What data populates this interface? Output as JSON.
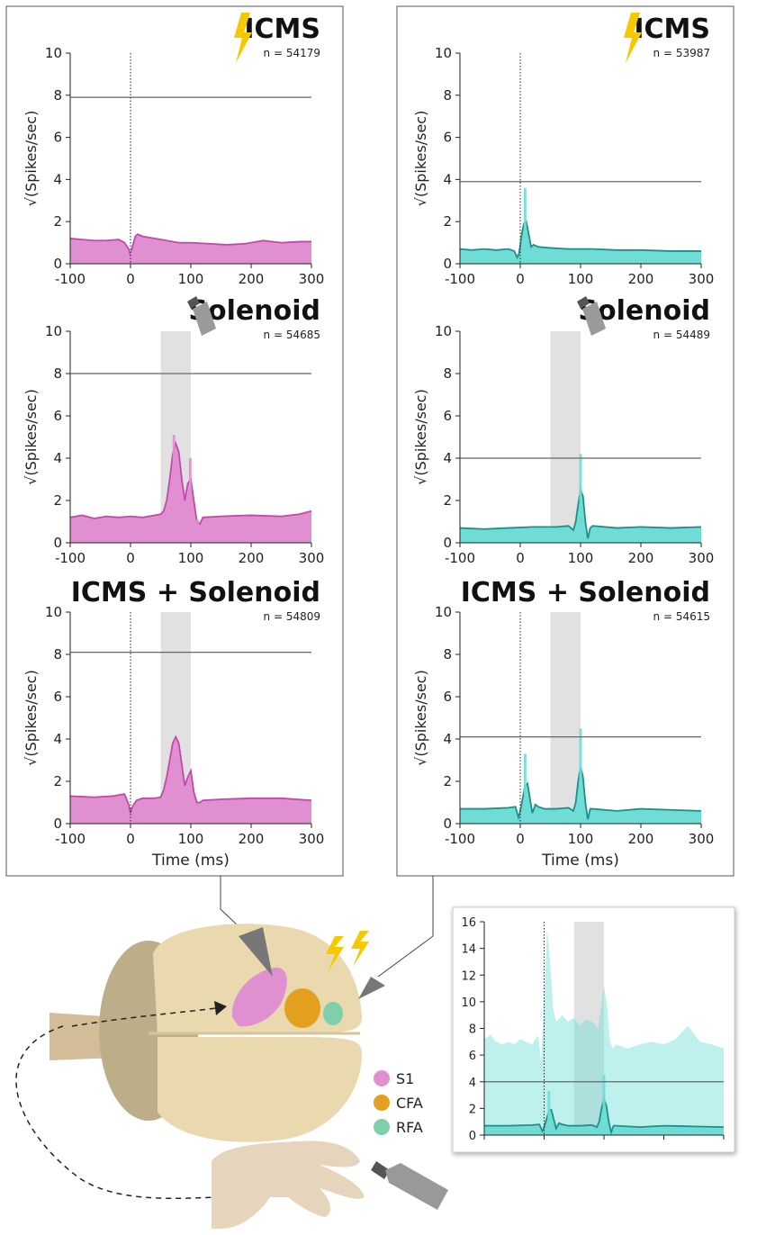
{
  "colors": {
    "s1": "#e08fd0",
    "s1_line": "#c04aaa",
    "rfa": "#6fddd6",
    "rfa_line": "#1e8f88",
    "cfa": "#e3a11f",
    "rfa_region": "#7fcfaa",
    "stim_shade": "#e1e1e1",
    "threshold": "#666666",
    "lightning": "#f6c800"
  },
  "legend": {
    "s1": "S1",
    "cfa": "CFA",
    "rfa": "RFA"
  },
  "chart_data": [
    {
      "type": "area",
      "column": "S1",
      "title": "ICMS",
      "n_label": "n = 54179",
      "ylabel": "√(Spikes/sec)",
      "xlabel": "",
      "xlim": [
        -100,
        300
      ],
      "ylim": [
        0,
        10
      ],
      "xticks": [
        "-100",
        "0",
        "100",
        "200",
        "300"
      ],
      "yticks": [
        "0",
        "2",
        "4",
        "6",
        "8",
        "10"
      ],
      "threshold": 7.9,
      "stim_marker_x": 0,
      "stim_window": null,
      "icon": "lightning",
      "x": [
        -100,
        -80,
        -60,
        -40,
        -20,
        -10,
        -3,
        0,
        3,
        8,
        12,
        20,
        40,
        60,
        80,
        100,
        130,
        160,
        190,
        220,
        250,
        280,
        300
      ],
      "y": [
        1.2,
        1.15,
        1.1,
        1.1,
        1.15,
        1.0,
        0.7,
        0.4,
        0.8,
        1.3,
        1.4,
        1.3,
        1.2,
        1.1,
        1.0,
        1.0,
        0.95,
        0.9,
        0.95,
        1.1,
        1.0,
        1.05,
        1.05
      ],
      "spikes": [
        [
          -2,
          0.2
        ],
        [
          2,
          0.6
        ]
      ]
    },
    {
      "type": "area",
      "column": "S1",
      "title": "Solenoid",
      "n_label": "n = 54685",
      "ylabel": "√(Spikes/sec)",
      "xlabel": "",
      "xlim": [
        -100,
        300
      ],
      "ylim": [
        0,
        10
      ],
      "xticks": [
        "-100",
        "0",
        "100",
        "200",
        "300"
      ],
      "yticks": [
        "0",
        "2",
        "4",
        "6",
        "8",
        "10"
      ],
      "threshold": 8.0,
      "stim_marker_x": null,
      "stim_window": [
        50,
        100
      ],
      "icon": "solenoid",
      "x": [
        -100,
        -80,
        -60,
        -40,
        -20,
        0,
        20,
        40,
        50,
        55,
        60,
        65,
        70,
        75,
        80,
        85,
        90,
        95,
        100,
        105,
        110,
        115,
        120,
        150,
        200,
        250,
        280,
        300
      ],
      "y": [
        1.2,
        1.3,
        1.15,
        1.25,
        1.2,
        1.25,
        1.2,
        1.3,
        1.35,
        1.5,
        2.0,
        3.0,
        4.2,
        4.7,
        4.3,
        3.0,
        2.0,
        2.8,
        3.0,
        2.0,
        1.0,
        0.9,
        1.2,
        1.25,
        1.3,
        1.25,
        1.35,
        1.5
      ],
      "spikes": [
        [
          72,
          5.1
        ],
        [
          99,
          4.0
        ],
        [
          111,
          1.1
        ]
      ]
    },
    {
      "type": "area",
      "column": "S1",
      "title": "ICMS + Solenoid",
      "n_label": "n = 54809",
      "ylabel": "√(Spikes/sec)",
      "xlabel": "Time (ms)",
      "xlim": [
        -100,
        300
      ],
      "ylim": [
        0,
        10
      ],
      "xticks": [
        "-100",
        "0",
        "100",
        "200",
        "300"
      ],
      "yticks": [
        "0",
        "2",
        "4",
        "6",
        "8",
        "10"
      ],
      "threshold": 8.1,
      "stim_marker_x": 0,
      "stim_window": [
        50,
        100
      ],
      "icon": null,
      "x": [
        -100,
        -60,
        -30,
        -10,
        -3,
        0,
        3,
        10,
        20,
        40,
        50,
        55,
        60,
        65,
        70,
        75,
        80,
        85,
        90,
        95,
        100,
        105,
        110,
        115,
        120,
        150,
        200,
        250,
        300
      ],
      "y": [
        1.3,
        1.25,
        1.3,
        1.4,
        0.9,
        0.5,
        0.8,
        1.1,
        1.2,
        1.2,
        1.25,
        1.6,
        2.2,
        3.0,
        3.8,
        4.1,
        3.8,
        2.8,
        1.8,
        2.2,
        2.5,
        1.5,
        1.0,
        1.0,
        1.1,
        1.15,
        1.2,
        1.2,
        1.1
      ]
    },
    {
      "type": "area",
      "column": "RFA",
      "title": "ICMS",
      "n_label": "n = 53987",
      "ylabel": "√(Spikes/sec)",
      "xlabel": "",
      "xlim": [
        -100,
        300
      ],
      "ylim": [
        0,
        10
      ],
      "xticks": [
        "-100",
        "0",
        "100",
        "200",
        "300"
      ],
      "yticks": [
        "0",
        "2",
        "4",
        "6",
        "8",
        "10"
      ],
      "threshold": 3.9,
      "stim_marker_x": 0,
      "stim_window": null,
      "icon": "lightning",
      "x": [
        -100,
        -80,
        -60,
        -40,
        -20,
        -10,
        -5,
        -2,
        0,
        3,
        6,
        10,
        14,
        18,
        22,
        30,
        50,
        80,
        120,
        160,
        200,
        250,
        300
      ],
      "y": [
        0.7,
        0.65,
        0.7,
        0.65,
        0.7,
        0.6,
        0.3,
        0.5,
        0.9,
        1.5,
        1.9,
        2.0,
        1.4,
        0.8,
        0.9,
        0.8,
        0.75,
        0.7,
        0.7,
        0.65,
        0.65,
        0.6,
        0.6
      ],
      "spikes": [
        [
          8,
          3.6
        ]
      ]
    },
    {
      "type": "area",
      "column": "RFA",
      "title": "Solenoid",
      "n_label": "n = 54489",
      "ylabel": "√(Spikes/sec)",
      "xlabel": "",
      "xlim": [
        -100,
        300
      ],
      "ylim": [
        0,
        10
      ],
      "xticks": [
        "-100",
        "0",
        "100",
        "200",
        "300"
      ],
      "yticks": [
        "0",
        "2",
        "4",
        "6",
        "8",
        "10"
      ],
      "threshold": 4.0,
      "stim_marker_x": null,
      "stim_window": [
        50,
        100
      ],
      "icon": "solenoid",
      "x": [
        -100,
        -60,
        -20,
        20,
        60,
        80,
        88,
        92,
        96,
        100,
        104,
        108,
        112,
        116,
        120,
        160,
        200,
        250,
        300
      ],
      "y": [
        0.7,
        0.65,
        0.7,
        0.75,
        0.75,
        0.8,
        0.6,
        1.0,
        1.8,
        2.5,
        2.2,
        1.0,
        0.2,
        0.7,
        0.8,
        0.7,
        0.75,
        0.7,
        0.75
      ],
      "spikes": [
        [
          100,
          4.2
        ]
      ]
    },
    {
      "type": "area",
      "column": "RFA",
      "title": "ICMS + Solenoid",
      "n_label": "n = 54615",
      "ylabel": "√(Spikes/sec)",
      "xlabel": "Time (ms)",
      "xlim": [
        -100,
        300
      ],
      "ylim": [
        0,
        10
      ],
      "xticks": [
        "-100",
        "0",
        "100",
        "200",
        "300"
      ],
      "yticks": [
        "0",
        "2",
        "4",
        "6",
        "8",
        "10"
      ],
      "threshold": 4.1,
      "stim_marker_x": 0,
      "stim_window": [
        50,
        100
      ],
      "icon": null,
      "x": [
        -100,
        -60,
        -20,
        -8,
        -3,
        0,
        4,
        8,
        12,
        16,
        20,
        25,
        30,
        40,
        60,
        80,
        88,
        92,
        96,
        100,
        104,
        108,
        112,
        116,
        120,
        160,
        200,
        250,
        300
      ],
      "y": [
        0.7,
        0.7,
        0.75,
        0.8,
        0.3,
        0.6,
        1.2,
        1.8,
        1.9,
        1.2,
        0.5,
        0.9,
        0.8,
        0.7,
        0.7,
        0.75,
        0.6,
        1.0,
        2.0,
        2.7,
        2.2,
        1.0,
        0.2,
        0.7,
        0.7,
        0.6,
        0.7,
        0.65,
        0.6
      ],
      "spikes": [
        [
          8,
          3.3
        ],
        [
          100,
          4.5
        ]
      ]
    },
    {
      "type": "area",
      "column": "RFA",
      "title": "",
      "n_label": "",
      "ylabel": "",
      "xlabel": "",
      "xlim": [
        -100,
        300
      ],
      "ylim": [
        0,
        16
      ],
      "xticks": [
        "",
        "",
        "",
        "",
        ""
      ],
      "yticks": [
        "0",
        "2",
        "4",
        "6",
        "8",
        "10",
        "12",
        "14",
        "16"
      ],
      "threshold": 4.0,
      "stim_marker_x": 0,
      "stim_window": [
        50,
        100
      ],
      "icon": null,
      "x": [
        -100,
        -90,
        -80,
        -70,
        -60,
        -50,
        -40,
        -30,
        -20,
        -10,
        -5,
        0,
        5,
        10,
        15,
        20,
        30,
        40,
        50,
        60,
        70,
        80,
        90,
        95,
        100,
        105,
        110,
        115,
        120,
        140,
        160,
        180,
        200,
        220,
        240,
        260,
        280,
        300
      ],
      "y": [
        7.2,
        7.5,
        7.0,
        6.8,
        7.0,
        6.8,
        7.2,
        7.0,
        6.8,
        7.5,
        5.5,
        10.0,
        15.5,
        13.0,
        9.5,
        8.5,
        9.0,
        8.5,
        8.8,
        8.2,
        8.7,
        8.5,
        8.0,
        9.5,
        11.2,
        9.8,
        7.0,
        6.5,
        6.8,
        6.5,
        6.8,
        7.0,
        6.8,
        7.2,
        8.2,
        7.0,
        6.8,
        6.5
      ],
      "overlay_x": [
        -100,
        -60,
        -20,
        -8,
        -3,
        0,
        4,
        8,
        12,
        16,
        20,
        25,
        30,
        40,
        60,
        80,
        88,
        92,
        96,
        100,
        104,
        108,
        112,
        116,
        120,
        160,
        200,
        250,
        300
      ],
      "overlay_y": [
        0.7,
        0.7,
        0.75,
        0.8,
        0.3,
        0.6,
        1.2,
        1.8,
        1.9,
        1.2,
        0.5,
        0.9,
        0.8,
        0.7,
        0.7,
        0.75,
        0.6,
        1.0,
        2.0,
        2.7,
        2.2,
        1.0,
        0.2,
        0.7,
        0.7,
        0.6,
        0.7,
        0.65,
        0.6
      ],
      "spikes": [
        [
          8,
          3.3
        ],
        [
          100,
          4.5
        ]
      ]
    }
  ]
}
